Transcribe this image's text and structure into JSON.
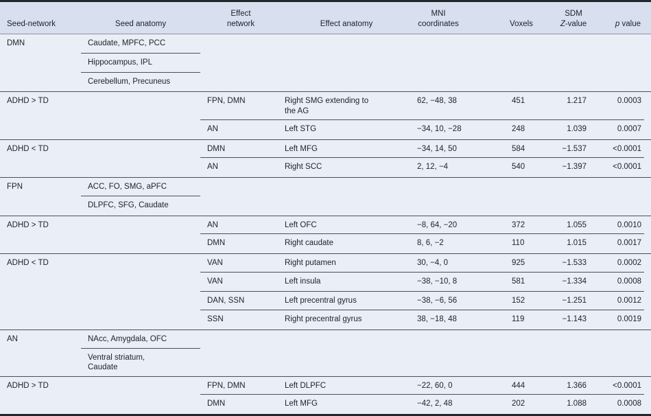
{
  "table": {
    "header": {
      "seed_network": "Seed-network",
      "seed_anatomy": "Seed anatomy",
      "effect_network": "Effect\nnetwork",
      "effect_anatomy": "Effect anatomy",
      "mni": "MNI\ncoordinates",
      "voxels": "Voxels",
      "sdm_line1": "SDM",
      "z_italic": "Z",
      "z_rest": "-value",
      "p_italic": "p",
      "p_rest": "value"
    },
    "rows": [
      {
        "seed_network": "DMN",
        "seed_anatomy": "Caudate, MPFC, PCC",
        "seed_underline": true
      },
      {
        "seed_anatomy": "Hippocampus, IPL",
        "seed_underline": true
      },
      {
        "seed_anatomy": "Cerebellum, Precuneus"
      },
      {
        "section_start": true,
        "seed_network": "ADHD > TD",
        "effect_network": "FPN, DMN",
        "effect_anatomy": "Right SMG extending to\nthe AG",
        "mni": "62, −48, 38",
        "voxels": "451",
        "z_value": "1.217",
        "p_value": "0.0003",
        "effect_underline": true
      },
      {
        "effect_network": "AN",
        "effect_anatomy": "Left STG",
        "mni": "−34, 10, −28",
        "voxels": "248",
        "z_value": "1.039",
        "p_value": "0.0007"
      },
      {
        "section_start": true,
        "seed_network": "ADHD < TD",
        "effect_network": "DMN",
        "effect_anatomy": "Left MFG",
        "mni": "−34, 14, 50",
        "voxels": "584",
        "z_value": "−1.537",
        "p_value": "<0.0001",
        "effect_underline": true
      },
      {
        "effect_network": "AN",
        "effect_anatomy": "Right SCC",
        "mni": "2, 12, −4",
        "voxels": "540",
        "z_value": "−1.397",
        "p_value": "<0.0001"
      },
      {
        "section_start": true,
        "seed_network": "FPN",
        "seed_anatomy": "ACC, FO, SMG, aPFC",
        "seed_underline": true
      },
      {
        "seed_anatomy": "DLPFC, SFG, Caudate"
      },
      {
        "section_start": true,
        "seed_network": "ADHD > TD",
        "effect_network": "AN",
        "effect_anatomy": "Left OFC",
        "mni": "−8, 64, −20",
        "voxels": "372",
        "z_value": "1.055",
        "p_value": "0.0010",
        "effect_underline": true
      },
      {
        "effect_network": "DMN",
        "effect_anatomy": "Right caudate",
        "mni": "8, 6, −2",
        "voxels": "110",
        "z_value": "1.015",
        "p_value": "0.0017"
      },
      {
        "section_start": true,
        "seed_network": "ADHD < TD",
        "effect_network": "VAN",
        "effect_anatomy": "Right putamen",
        "mni": "30, −4, 0",
        "voxels": "925",
        "z_value": "−1.533",
        "p_value": "0.0002",
        "effect_underline": true
      },
      {
        "effect_network": "VAN",
        "effect_anatomy": "Left insula",
        "mni": "−38, −10, 8",
        "voxels": "581",
        "z_value": "−1.334",
        "p_value": "0.0008",
        "effect_underline": true
      },
      {
        "effect_network": "DAN, SSN",
        "effect_anatomy": "Left precentral gyrus",
        "mni": "−38, −6, 56",
        "voxels": "152",
        "z_value": "−1.251",
        "p_value": "0.0012",
        "effect_underline": true
      },
      {
        "effect_network": "SSN",
        "effect_anatomy": "Right precentral gyrus",
        "mni": "38, −18, 48",
        "voxels": "119",
        "z_value": "−1.143",
        "p_value": "0.0019"
      },
      {
        "section_start": true,
        "seed_network": "AN",
        "seed_anatomy": "NAcc, Amygdala, OFC",
        "seed_underline": true
      },
      {
        "seed_anatomy": "Ventral striatum,\nCaudate"
      },
      {
        "section_start": true,
        "seed_network": "ADHD > TD",
        "effect_network": "FPN, DMN",
        "effect_anatomy": "Left DLPFC",
        "mni": "−22, 60, 0",
        "voxels": "444",
        "z_value": "1.366",
        "p_value": "<0.0001",
        "effect_underline": true
      },
      {
        "effect_network": "DMN",
        "effect_anatomy": "Left MFG",
        "mni": "−42, 2, 48",
        "voxels": "202",
        "z_value": "1.088",
        "p_value": "0.0008"
      }
    ],
    "colors": {
      "header_background": "#d8dfef",
      "body_background": "#eaeef6",
      "separator_line": "#49505a",
      "frame_border": "#23272e"
    }
  }
}
